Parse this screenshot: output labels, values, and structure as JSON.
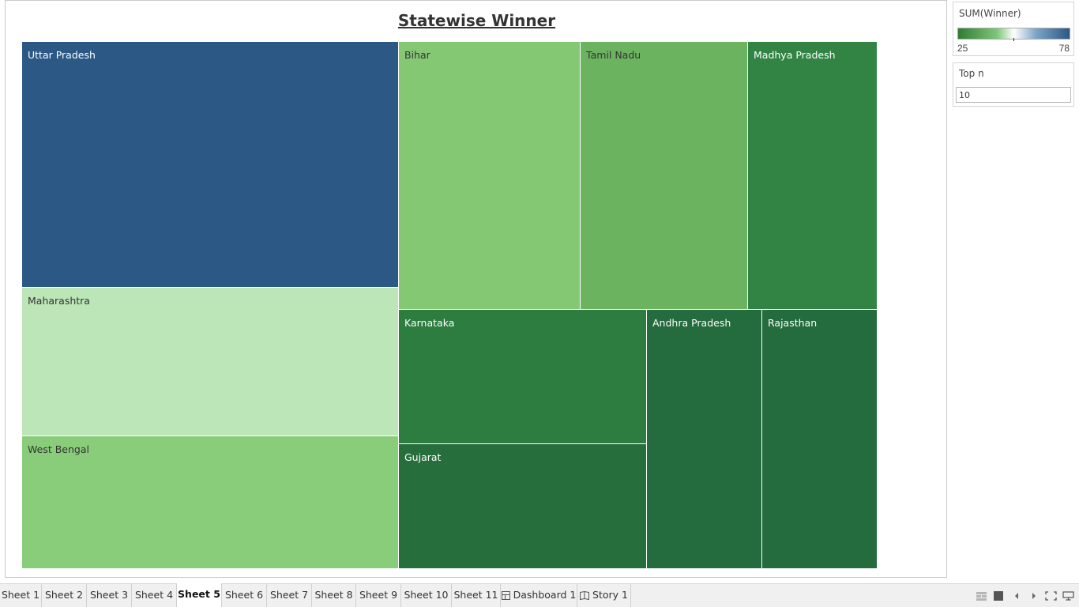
{
  "sheet": {
    "title": "Statewise Winner"
  },
  "chart_data": {
    "type": "treemap",
    "title": "Statewise Winner",
    "color_measure": "SUM(Winner)",
    "color_range": [
      25,
      78
    ],
    "color_ramp": [
      "#2e7d32",
      "#ffffff",
      "#2b5885"
    ],
    "top_n": 10,
    "tiles": [
      {
        "label": "Uttar Pradesh",
        "value": 78,
        "color": "#2b5885",
        "text_color": "#ffffff"
      },
      {
        "label": "Maharashtra",
        "value": 48,
        "color": "#bce6b7",
        "text_color": "#333333"
      },
      {
        "label": "West Bengal",
        "value": 42,
        "color": "#89cd7a",
        "text_color": "#333333"
      },
      {
        "label": "Bihar",
        "value": 40,
        "color": "#84c874",
        "text_color": "#333333"
      },
      {
        "label": "Tamil Nadu",
        "value": 38,
        "color": "#6cb35f",
        "text_color": "#333333"
      },
      {
        "label": "Madhya Pradesh",
        "value": 29,
        "color": "#328444",
        "text_color": "#ffffff"
      },
      {
        "label": "Karnataka",
        "value": 28,
        "color": "#2d7c40",
        "text_color": "#ffffff"
      },
      {
        "label": "Gujarat",
        "value": 26,
        "color": "#276e3d",
        "text_color": "#ffffff"
      },
      {
        "label": "Andhra Pradesh",
        "value": 25,
        "color": "#246b3e",
        "text_color": "#ffffff"
      },
      {
        "label": "Rajasthan",
        "value": 25,
        "color": "#246b3e",
        "text_color": "#ffffff"
      }
    ]
  },
  "legend": {
    "title": "SUM(Winner)",
    "min_label": "25",
    "max_label": "78"
  },
  "filter": {
    "title": "Top n",
    "value": "10"
  },
  "tabs": [
    {
      "label": "Sheet 1",
      "active": false,
      "icon": ""
    },
    {
      "label": "Sheet 2",
      "active": false,
      "icon": ""
    },
    {
      "label": "Sheet 3",
      "active": false,
      "icon": ""
    },
    {
      "label": "Sheet 4",
      "active": false,
      "icon": ""
    },
    {
      "label": "Sheet 5",
      "active": true,
      "icon": ""
    },
    {
      "label": "Sheet 6",
      "active": false,
      "icon": ""
    },
    {
      "label": "Sheet 7",
      "active": false,
      "icon": ""
    },
    {
      "label": "Sheet 8",
      "active": false,
      "icon": ""
    },
    {
      "label": "Sheet 9",
      "active": false,
      "icon": ""
    },
    {
      "label": "Sheet 10",
      "active": false,
      "icon": ""
    },
    {
      "label": "Sheet 11",
      "active": false,
      "icon": ""
    },
    {
      "label": "Dashboard 1",
      "active": false,
      "icon": "dashboard-icon"
    },
    {
      "label": "Story 1",
      "active": false,
      "icon": "story-icon"
    }
  ],
  "nav_icons": [
    "show-sheet-sorter-icon",
    "show-filmstrip-icon",
    "previous-sheet-icon",
    "next-sheet-icon",
    "fullscreen-icon",
    "presentation-mode-icon"
  ]
}
